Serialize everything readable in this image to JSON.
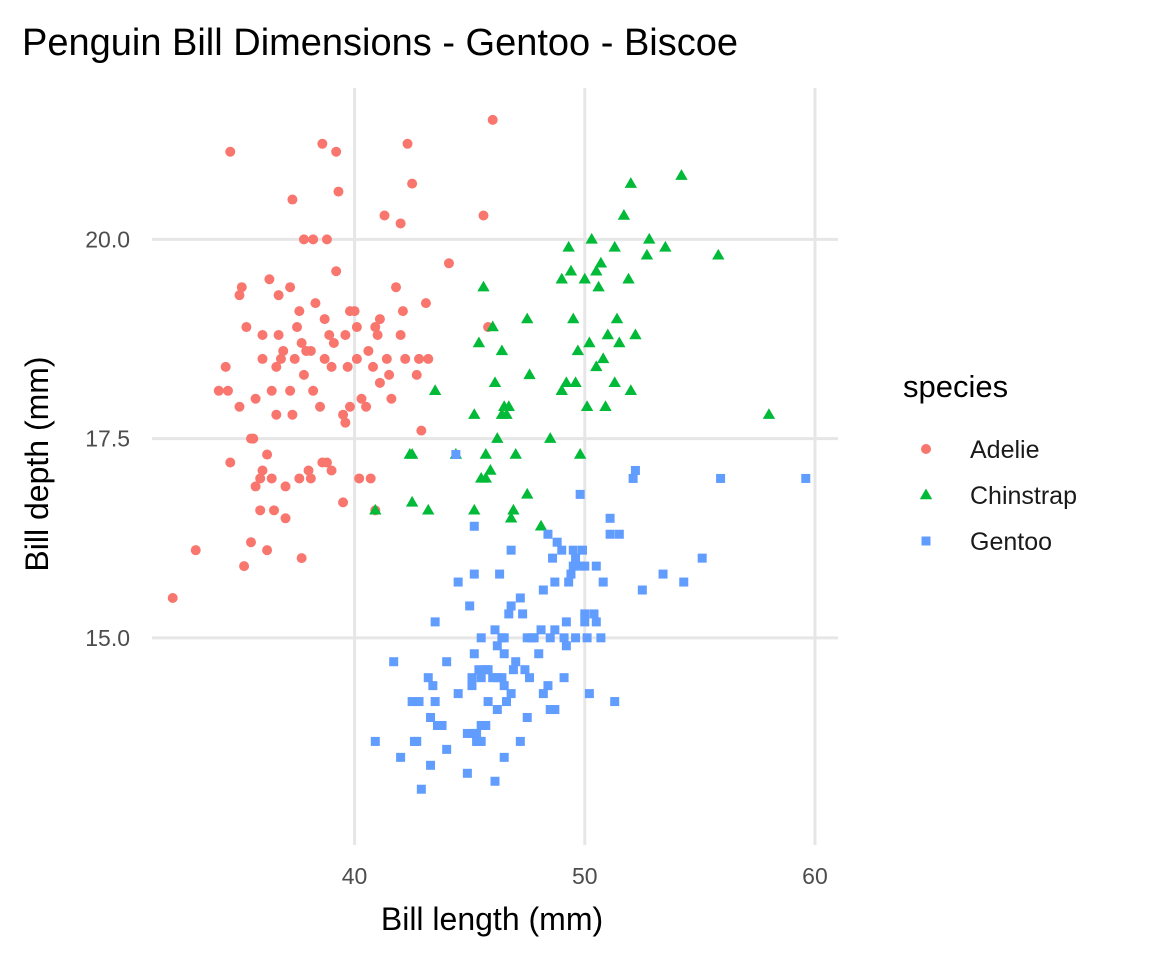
{
  "chart_data": {
    "type": "scatter",
    "title": "Penguin Bill Dimensions - Gentoo - Biscoe",
    "xlabel": "Bill length (mm)",
    "ylabel": "Bill depth (mm)",
    "xlim": [
      31.2,
      61.0
    ],
    "ylim": [
      12.4,
      21.9
    ],
    "x_ticks": [
      40,
      50,
      60
    ],
    "y_ticks": [
      15.0,
      17.5,
      20.0
    ],
    "x_tick_labels": [
      "40",
      "50",
      "60"
    ],
    "y_tick_labels": [
      "15.0",
      "17.5",
      "20.0"
    ],
    "grid": true,
    "legend": {
      "title": "species",
      "position": "right",
      "entries": [
        "Adelie",
        "Chinstrap",
        "Gentoo"
      ]
    },
    "series": [
      {
        "name": "Adelie",
        "color": "#f8766d",
        "shape": "circle",
        "points": [
          [
            32.1,
            15.5
          ],
          [
            33.1,
            16.1
          ],
          [
            34.1,
            18.1
          ],
          [
            34.4,
            18.4
          ],
          [
            34.5,
            18.1
          ],
          [
            34.6,
            21.1
          ],
          [
            34.6,
            17.2
          ],
          [
            35.0,
            17.9
          ],
          [
            35.1,
            19.4
          ],
          [
            35.2,
            15.9
          ],
          [
            35.3,
            18.9
          ],
          [
            35.5,
            17.5
          ],
          [
            35.5,
            16.2
          ],
          [
            35.6,
            17.5
          ],
          [
            35.7,
            16.9
          ],
          [
            35.7,
            18.0
          ],
          [
            35.9,
            16.6
          ],
          [
            35.9,
            17.0
          ],
          [
            36.0,
            17.1
          ],
          [
            36.0,
            18.5
          ],
          [
            36.2,
            16.1
          ],
          [
            36.2,
            17.3
          ],
          [
            36.3,
            19.5
          ],
          [
            36.4,
            17.0
          ],
          [
            36.5,
            16.6
          ],
          [
            36.6,
            17.8
          ],
          [
            36.7,
            18.8
          ],
          [
            36.7,
            19.3
          ],
          [
            36.8,
            18.5
          ],
          [
            36.9,
            18.6
          ],
          [
            37.0,
            16.9
          ],
          [
            37.2,
            18.1
          ],
          [
            37.2,
            19.4
          ],
          [
            37.3,
            20.5
          ],
          [
            37.3,
            17.8
          ],
          [
            37.6,
            17.0
          ],
          [
            37.6,
            19.1
          ],
          [
            37.7,
            18.7
          ],
          [
            37.7,
            16.0
          ],
          [
            37.8,
            18.3
          ],
          [
            37.8,
            20.0
          ],
          [
            37.9,
            18.6
          ],
          [
            38.1,
            17.0
          ],
          [
            38.1,
            18.6
          ],
          [
            38.2,
            18.1
          ],
          [
            38.2,
            20.0
          ],
          [
            38.5,
            17.9
          ],
          [
            38.6,
            21.2
          ],
          [
            38.6,
            17.2
          ],
          [
            38.7,
            19.0
          ],
          [
            38.8,
            17.2
          ],
          [
            38.8,
            20.0
          ],
          [
            38.9,
            18.8
          ],
          [
            39.0,
            17.1
          ],
          [
            39.1,
            18.7
          ],
          [
            39.2,
            19.6
          ],
          [
            39.2,
            21.1
          ],
          [
            39.3,
            20.6
          ],
          [
            39.5,
            16.7
          ],
          [
            39.5,
            17.8
          ],
          [
            39.6,
            17.7
          ],
          [
            39.6,
            18.8
          ],
          [
            39.7,
            18.4
          ],
          [
            39.8,
            19.1
          ],
          [
            40.1,
            18.9
          ],
          [
            40.2,
            17.0
          ],
          [
            40.3,
            18.0
          ],
          [
            40.5,
            17.9
          ],
          [
            40.6,
            18.6
          ],
          [
            40.7,
            17.0
          ],
          [
            40.8,
            18.4
          ],
          [
            40.9,
            18.9
          ],
          [
            41.1,
            18.2
          ],
          [
            41.1,
            19.0
          ],
          [
            41.3,
            20.3
          ],
          [
            41.5,
            18.3
          ],
          [
            41.6,
            18.0
          ],
          [
            41.8,
            19.4
          ],
          [
            42.0,
            20.2
          ],
          [
            42.1,
            19.1
          ],
          [
            42.2,
            18.5
          ],
          [
            42.3,
            21.2
          ],
          [
            42.5,
            20.7
          ],
          [
            42.7,
            18.3
          ],
          [
            42.8,
            18.5
          ],
          [
            42.9,
            17.6
          ],
          [
            43.1,
            19.2
          ],
          [
            43.2,
            18.5
          ],
          [
            44.1,
            19.7
          ],
          [
            45.6,
            20.3
          ],
          [
            46.0,
            21.5
          ],
          [
            45.8,
            18.9
          ],
          [
            36.4,
            18.1
          ],
          [
            37.5,
            18.9
          ],
          [
            38.3,
            19.2
          ],
          [
            39.8,
            17.9
          ],
          [
            40.9,
            16.6
          ],
          [
            41.4,
            18.5
          ],
          [
            35.0,
            19.3
          ],
          [
            36.6,
            18.4
          ],
          [
            37.0,
            16.5
          ],
          [
            38.0,
            17.1
          ],
          [
            39.0,
            18.4
          ],
          [
            40.1,
            18.5
          ],
          [
            41.0,
            18.8
          ],
          [
            42.0,
            18.8
          ],
          [
            36.0,
            18.8
          ],
          [
            37.4,
            18.5
          ],
          [
            38.7,
            18.5
          ],
          [
            40.0,
            19.1
          ]
        ]
      },
      {
        "name": "Chinstrap",
        "color": "#00ba38",
        "shape": "triangle",
        "points": [
          [
            40.9,
            16.6
          ],
          [
            42.4,
            17.3
          ],
          [
            42.5,
            16.7
          ],
          [
            42.5,
            17.3
          ],
          [
            43.2,
            16.6
          ],
          [
            43.5,
            18.1
          ],
          [
            44.4,
            17.3
          ],
          [
            45.2,
            16.6
          ],
          [
            45.2,
            17.8
          ],
          [
            45.4,
            18.7
          ],
          [
            45.5,
            17.0
          ],
          [
            45.6,
            19.4
          ],
          [
            45.7,
            17.3
          ],
          [
            45.7,
            17.0
          ],
          [
            45.9,
            17.1
          ],
          [
            46.1,
            18.2
          ],
          [
            46.2,
            17.5
          ],
          [
            46.4,
            18.6
          ],
          [
            46.4,
            17.8
          ],
          [
            46.5,
            17.9
          ],
          [
            46.6,
            17.8
          ],
          [
            46.7,
            17.9
          ],
          [
            46.8,
            16.5
          ],
          [
            46.9,
            16.6
          ],
          [
            47.0,
            17.3
          ],
          [
            47.5,
            16.8
          ],
          [
            47.6,
            18.3
          ],
          [
            48.1,
            16.4
          ],
          [
            48.5,
            17.5
          ],
          [
            49.0,
            18.1
          ],
          [
            49.0,
            19.5
          ],
          [
            49.2,
            18.2
          ],
          [
            49.3,
            19.9
          ],
          [
            49.5,
            19.0
          ],
          [
            49.6,
            18.2
          ],
          [
            49.7,
            18.6
          ],
          [
            49.8,
            17.3
          ],
          [
            50.0,
            19.5
          ],
          [
            50.1,
            17.9
          ],
          [
            50.2,
            18.7
          ],
          [
            50.3,
            20.0
          ],
          [
            50.5,
            18.4
          ],
          [
            50.5,
            19.6
          ],
          [
            50.6,
            19.4
          ],
          [
            50.7,
            19.7
          ],
          [
            50.8,
            18.5
          ],
          [
            50.9,
            17.9
          ],
          [
            51.0,
            18.8
          ],
          [
            51.3,
            18.2
          ],
          [
            51.3,
            19.9
          ],
          [
            51.4,
            19.0
          ],
          [
            51.5,
            18.7
          ],
          [
            51.7,
            20.3
          ],
          [
            51.9,
            19.5
          ],
          [
            52.0,
            20.7
          ],
          [
            52.0,
            18.1
          ],
          [
            52.2,
            18.8
          ],
          [
            52.7,
            19.8
          ],
          [
            52.8,
            20.0
          ],
          [
            53.5,
            19.9
          ],
          [
            54.2,
            20.8
          ],
          [
            55.8,
            19.8
          ],
          [
            58.0,
            17.8
          ],
          [
            46.0,
            18.9
          ],
          [
            47.5,
            19.0
          ],
          [
            49.4,
            19.6
          ]
        ]
      },
      {
        "name": "Gentoo",
        "color": "#619cff",
        "shape": "square",
        "points": [
          [
            40.9,
            13.7
          ],
          [
            41.7,
            14.7
          ],
          [
            42.0,
            13.5
          ],
          [
            42.5,
            14.2
          ],
          [
            42.6,
            13.7
          ],
          [
            42.7,
            13.7
          ],
          [
            42.8,
            14.2
          ],
          [
            42.9,
            13.1
          ],
          [
            43.2,
            14.5
          ],
          [
            43.3,
            13.4
          ],
          [
            43.3,
            14.0
          ],
          [
            43.4,
            14.4
          ],
          [
            43.5,
            14.2
          ],
          [
            43.5,
            15.2
          ],
          [
            43.6,
            13.9
          ],
          [
            43.8,
            13.9
          ],
          [
            44.0,
            13.6
          ],
          [
            44.4,
            17.3
          ],
          [
            44.5,
            14.3
          ],
          [
            44.5,
            15.7
          ],
          [
            44.9,
            13.3
          ],
          [
            44.9,
            13.8
          ],
          [
            45.0,
            15.4
          ],
          [
            45.1,
            14.4
          ],
          [
            45.1,
            14.5
          ],
          [
            45.2,
            13.8
          ],
          [
            45.2,
            14.8
          ],
          [
            45.2,
            15.8
          ],
          [
            45.2,
            16.4
          ],
          [
            45.3,
            13.7
          ],
          [
            45.3,
            13.8
          ],
          [
            45.4,
            14.6
          ],
          [
            45.4,
            13.7
          ],
          [
            45.5,
            13.7
          ],
          [
            45.5,
            13.9
          ],
          [
            45.5,
            14.5
          ],
          [
            45.5,
            15.0
          ],
          [
            45.7,
            13.9
          ],
          [
            45.7,
            14.6
          ],
          [
            45.8,
            14.2
          ],
          [
            45.8,
            14.6
          ],
          [
            46.1,
            13.2
          ],
          [
            46.1,
            15.1
          ],
          [
            46.2,
            14.1
          ],
          [
            46.2,
            14.5
          ],
          [
            46.2,
            14.9
          ],
          [
            46.3,
            15.8
          ],
          [
            46.4,
            14.5
          ],
          [
            46.4,
            15.0
          ],
          [
            46.5,
            13.5
          ],
          [
            46.5,
            14.4
          ],
          [
            46.5,
            14.8
          ],
          [
            46.6,
            14.2
          ],
          [
            46.7,
            15.3
          ],
          [
            46.8,
            14.3
          ],
          [
            46.8,
            15.4
          ],
          [
            46.8,
            16.1
          ],
          [
            46.9,
            14.6
          ],
          [
            47.2,
            13.7
          ],
          [
            47.2,
            15.5
          ],
          [
            47.3,
            15.3
          ],
          [
            47.4,
            14.6
          ],
          [
            47.5,
            14.0
          ],
          [
            47.5,
            15.0
          ],
          [
            47.6,
            14.5
          ],
          [
            47.7,
            15.0
          ],
          [
            47.8,
            15.0
          ],
          [
            48.1,
            15.1
          ],
          [
            48.2,
            14.3
          ],
          [
            48.2,
            15.6
          ],
          [
            48.4,
            14.4
          ],
          [
            48.4,
            16.3
          ],
          [
            48.5,
            14.1
          ],
          [
            48.5,
            15.0
          ],
          [
            48.6,
            16.0
          ],
          [
            48.7,
            14.1
          ],
          [
            48.7,
            15.1
          ],
          [
            48.7,
            15.7
          ],
          [
            48.8,
            16.2
          ],
          [
            49.0,
            16.1
          ],
          [
            49.1,
            14.5
          ],
          [
            49.1,
            15.0
          ],
          [
            49.2,
            15.2
          ],
          [
            49.3,
            15.7
          ],
          [
            49.4,
            15.8
          ],
          [
            49.5,
            15.9
          ],
          [
            49.5,
            16.1
          ],
          [
            49.6,
            15.0
          ],
          [
            49.6,
            16.0
          ],
          [
            49.8,
            15.9
          ],
          [
            49.8,
            16.8
          ],
          [
            49.9,
            16.1
          ],
          [
            50.0,
            15.2
          ],
          [
            50.0,
            15.9
          ],
          [
            50.1,
            15.0
          ],
          [
            50.2,
            14.3
          ],
          [
            50.4,
            15.3
          ],
          [
            50.5,
            15.2
          ],
          [
            50.5,
            15.9
          ],
          [
            50.7,
            15.0
          ],
          [
            50.8,
            15.7
          ],
          [
            51.1,
            16.3
          ],
          [
            51.1,
            16.5
          ],
          [
            51.3,
            14.2
          ],
          [
            51.5,
            16.3
          ],
          [
            52.1,
            17.0
          ],
          [
            52.2,
            17.1
          ],
          [
            52.5,
            15.6
          ],
          [
            53.4,
            15.8
          ],
          [
            54.3,
            15.7
          ],
          [
            55.1,
            16.0
          ],
          [
            55.9,
            17.0
          ],
          [
            59.6,
            17.0
          ],
          [
            46.5,
            15.0
          ],
          [
            47.0,
            14.7
          ],
          [
            48.0,
            14.8
          ],
          [
            49.2,
            14.9
          ],
          [
            50.0,
            15.3
          ],
          [
            44.0,
            14.7
          ],
          [
            46.0,
            14.5
          ]
        ]
      }
    ]
  }
}
